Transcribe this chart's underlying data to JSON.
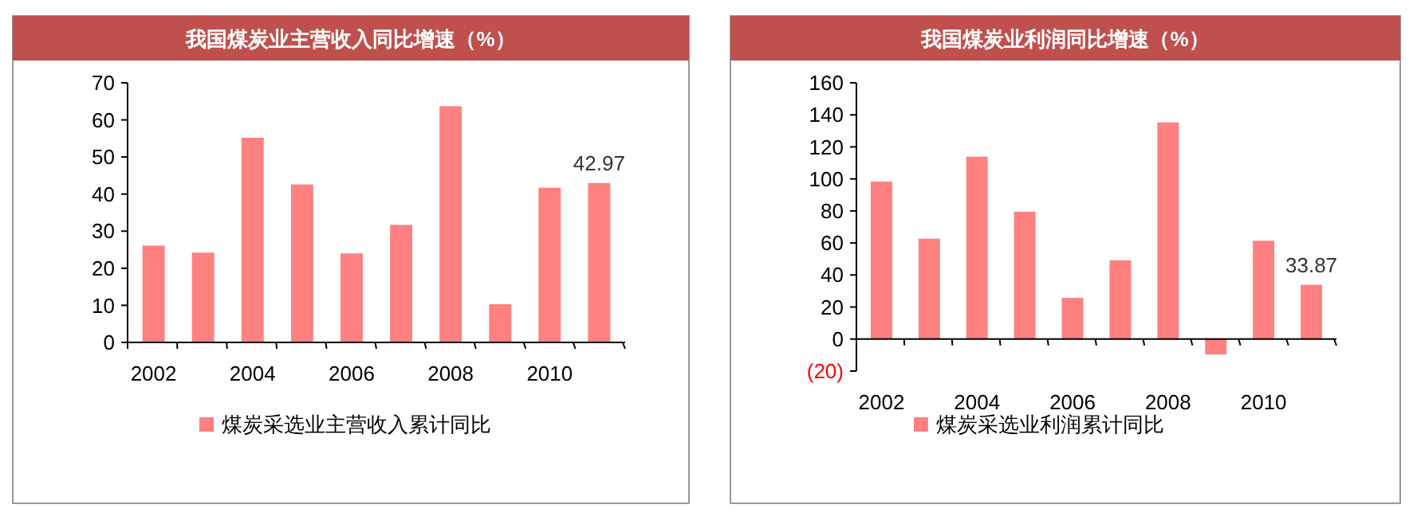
{
  "chart_data": [
    {
      "type": "bar",
      "title": "我国煤炭业主营收入同比增速（%）",
      "categories": [
        "2002",
        null,
        "2004",
        null,
        "2006",
        null,
        "2008",
        null,
        "2010",
        null
      ],
      "series": [
        {
          "name": "煤炭采选业主营收入累计同比",
          "color": "#ff8080",
          "values": [
            26.1,
            24.2,
            55.2,
            42.6,
            24.0,
            31.7,
            63.7,
            10.3,
            41.7,
            42.97
          ],
          "value_labels": [
            null,
            null,
            null,
            null,
            null,
            null,
            null,
            null,
            null,
            "42.97"
          ]
        }
      ],
      "ylim": [
        0,
        70
      ],
      "yticks": [
        0,
        10,
        20,
        30,
        40,
        50,
        60,
        70
      ],
      "legend": "bottom",
      "grid": false
    },
    {
      "type": "bar",
      "title": "我国煤炭业利润同比增速（%）",
      "categories": [
        "2002",
        null,
        "2004",
        null,
        "2006",
        null,
        "2008",
        null,
        "2010",
        null
      ],
      "series": [
        {
          "name": "煤炭采选业利润累计同比",
          "color": "#ff8080",
          "values": [
            98.3,
            62.7,
            113.9,
            79.5,
            25.7,
            49.2,
            135.3,
            -9.6,
            61.4,
            33.87
          ],
          "value_labels": [
            null,
            null,
            null,
            null,
            null,
            null,
            null,
            null,
            null,
            "33.87"
          ]
        }
      ],
      "ylim": [
        -20,
        160
      ],
      "yticks": [
        {
          "value": -20,
          "label": "(20)"
        },
        0,
        20,
        40,
        60,
        80,
        100,
        120,
        140,
        160
      ],
      "legend": "bottom",
      "grid": false
    }
  ]
}
